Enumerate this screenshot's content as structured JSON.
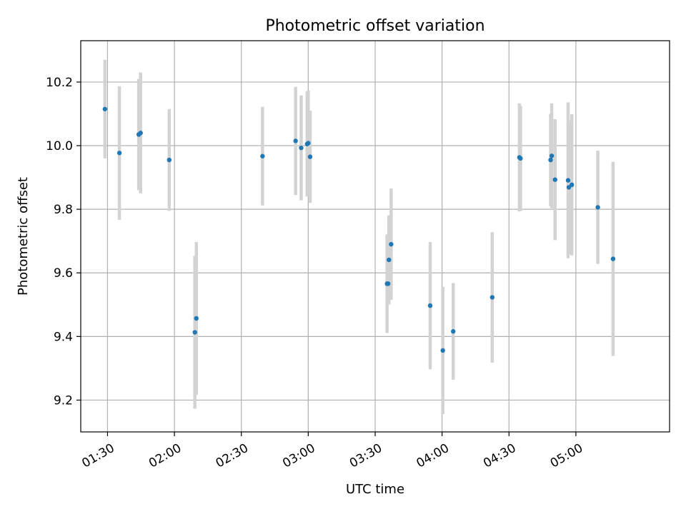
{
  "chart_data": {
    "type": "scatter",
    "title": "Photometric offset variation",
    "xlabel": "UTC time",
    "ylabel": "Photometric offset",
    "xlim": [
      "01:18",
      "05:42"
    ],
    "ylim": [
      9.1,
      10.33
    ],
    "grid": true,
    "x_ticks": [
      "01:30",
      "02:00",
      "02:30",
      "03:00",
      "03:30",
      "04:00",
      "04:30",
      "05:00"
    ],
    "y_ticks": [
      9.2,
      9.4,
      9.6,
      9.8,
      10.0,
      10.2
    ],
    "colors": {
      "points": "#1f77b4",
      "errorbars": "#d3d3d3",
      "grid": "#b0b0b0"
    },
    "points": [
      {
        "x": "01:28:50",
        "y": 10.115,
        "err": 0.155
      },
      {
        "x": "01:35:20",
        "y": 9.977,
        "err": 0.21
      },
      {
        "x": "01:44:00",
        "y": 10.035,
        "err": 0.175
      },
      {
        "x": "01:44:50",
        "y": 10.04,
        "err": 0.19
      },
      {
        "x": "01:57:40",
        "y": 9.955,
        "err": 0.16
      },
      {
        "x": "02:09:10",
        "y": 9.413,
        "err": 0.24
      },
      {
        "x": "02:09:50",
        "y": 9.457,
        "err": 0.24
      },
      {
        "x": "02:39:30",
        "y": 9.967,
        "err": 0.155
      },
      {
        "x": "02:54:20",
        "y": 10.015,
        "err": 0.17
      },
      {
        "x": "02:56:50",
        "y": 9.993,
        "err": 0.165
      },
      {
        "x": "02:59:30",
        "y": 10.005,
        "err": 0.165
      },
      {
        "x": "03:00:00",
        "y": 10.008,
        "err": 0.165
      },
      {
        "x": "03:00:50",
        "y": 9.965,
        "err": 0.145
      },
      {
        "x": "03:35:20",
        "y": 9.566,
        "err": 0.155
      },
      {
        "x": "03:35:50",
        "y": 9.566,
        "err": 0.065
      },
      {
        "x": "03:36:10",
        "y": 9.641,
        "err": 0.14
      },
      {
        "x": "03:37:10",
        "y": 9.69,
        "err": 0.175
      },
      {
        "x": "03:54:40",
        "y": 9.497,
        "err": 0.2
      },
      {
        "x": "04:00:20",
        "y": 9.356,
        "err": 0.2
      },
      {
        "x": "04:05:00",
        "y": 9.416,
        "err": 0.152
      },
      {
        "x": "04:22:30",
        "y": 9.523,
        "err": 0.205
      },
      {
        "x": "04:34:40",
        "y": 9.963,
        "err": 0.17
      },
      {
        "x": "04:35:10",
        "y": 9.96,
        "err": 0.165
      },
      {
        "x": "04:48:40",
        "y": 9.955,
        "err": 0.145
      },
      {
        "x": "04:49:10",
        "y": 9.968,
        "err": 0.165
      },
      {
        "x": "04:50:40",
        "y": 9.893,
        "err": 0.19
      },
      {
        "x": "04:56:30",
        "y": 9.891,
        "err": 0.245
      },
      {
        "x": "04:56:50",
        "y": 9.869,
        "err": 0.21
      },
      {
        "x": "04:58:10",
        "y": 9.877,
        "err": 0.222
      },
      {
        "x": "05:09:50",
        "y": 9.806,
        "err": 0.178
      },
      {
        "x": "05:16:40",
        "y": 9.644,
        "err": 0.305
      }
    ]
  }
}
